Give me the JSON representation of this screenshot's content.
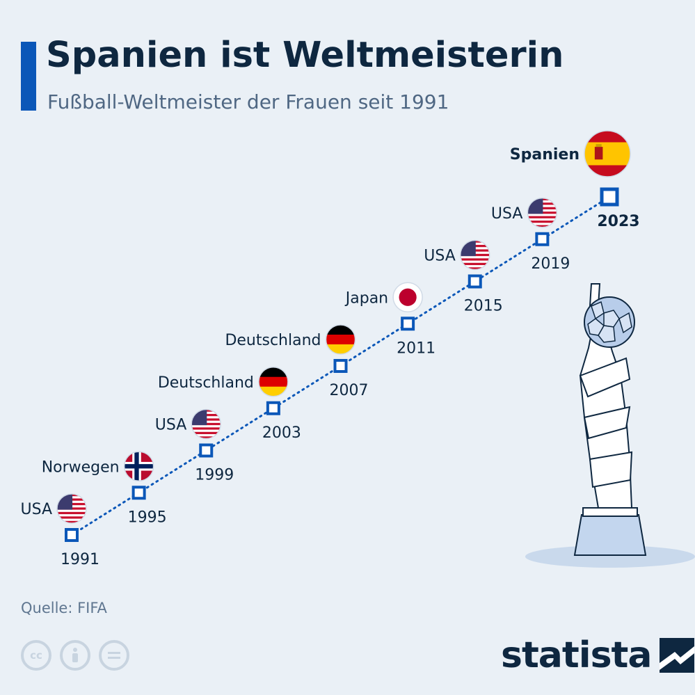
{
  "header": {
    "title": "Spanien ist Weltmeisterin",
    "subtitle": "Fußball-Weltmeister der Frauen seit 1991"
  },
  "footer": {
    "source": "Quelle: FIFA",
    "brand": "statista",
    "license_icons": [
      "cc-icon",
      "attribution-icon",
      "no-derivatives-icon"
    ]
  },
  "colors": {
    "accent": "#0b57b8",
    "title": "#0e2740",
    "background": "#eaf0f6"
  },
  "chart_data": {
    "type": "scatter",
    "title": "Spanien ist Weltmeisterin",
    "subtitle": "Fußball-Weltmeister der Frauen seit 1991",
    "series": [
      {
        "values": [
          {
            "year": "1991",
            "winner": "USA",
            "flag": "usa-flag-icon"
          },
          {
            "year": "1995",
            "winner": "Norwegen",
            "flag": "norway-flag-icon"
          },
          {
            "year": "1999",
            "winner": "USA",
            "flag": "usa-flag-icon"
          },
          {
            "year": "2003",
            "winner": "Deutschland",
            "flag": "germany-flag-icon"
          },
          {
            "year": "2007",
            "winner": "Deutschland",
            "flag": "germany-flag-icon"
          },
          {
            "year": "2011",
            "winner": "Japan",
            "flag": "japan-flag-icon"
          },
          {
            "year": "2015",
            "winner": "USA",
            "flag": "usa-flag-icon"
          },
          {
            "year": "2019",
            "winner": "USA",
            "flag": "usa-flag-icon"
          },
          {
            "year": "2023",
            "winner": "Spanien",
            "flag": "spain-flag-icon",
            "highlight": true
          }
        ]
      }
    ],
    "grid": false,
    "legend": "none"
  }
}
